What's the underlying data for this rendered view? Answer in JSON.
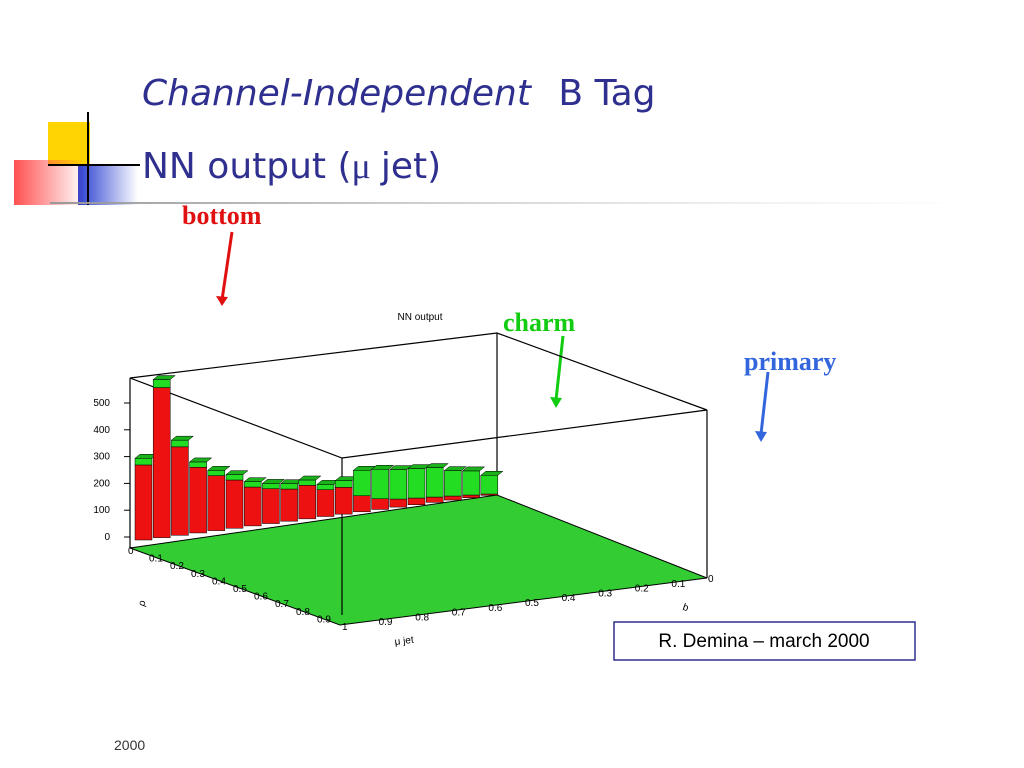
{
  "slide": {
    "title": {
      "italic": "Channel-Independent",
      "rest": "B Tag",
      "line2_start": "NN output (",
      "mu": "μ",
      "line2_end": "jet)"
    },
    "labels": {
      "bottom": "bottom",
      "charm": "charm",
      "primary": "primary"
    },
    "plot": {
      "title": "NN output",
      "zticks": [
        0,
        100,
        200,
        300,
        400,
        500
      ],
      "rho_ticks": [
        0,
        0.1,
        0.2,
        0.3,
        0.4,
        0.5,
        0.6,
        0.7,
        0.8,
        0.9
      ],
      "rho_label": "ρ",
      "mu_ticks": [
        1,
        0.9,
        0.8,
        0.7,
        0.6,
        0.5,
        0.4,
        0.3,
        0.2,
        0.1,
        0
      ],
      "mu_label": "μ jet",
      "b_label": "b",
      "series": [
        {
          "name": "bottom",
          "color": "#ee1111",
          "values": [
            280,
            560,
            330,
            245,
            205,
            180,
            145,
            130,
            120,
            125,
            100,
            100,
            60,
            40,
            30,
            25,
            20,
            15,
            10,
            5
          ]
        },
        {
          "name": "charm",
          "color": "#22dd22",
          "values": [
            25,
            30,
            25,
            20,
            20,
            20,
            20,
            20,
            20,
            20,
            20,
            25,
            95,
            110,
            110,
            110,
            110,
            95,
            90,
            70
          ]
        }
      ]
    },
    "credit": "R. Demina – march 2000",
    "footer": "2000"
  }
}
